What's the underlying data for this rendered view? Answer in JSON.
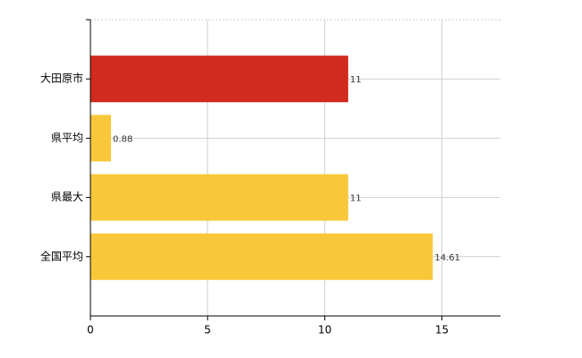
{
  "chart_data": {
    "type": "barh",
    "categories": [
      "大田原市",
      "県平均",
      "県最大",
      "全国平均"
    ],
    "values": [
      11,
      0.88,
      11,
      14.61
    ],
    "colors": [
      "#d12a1e",
      "#f8c83a",
      "#f8c83a",
      "#f8c83a"
    ],
    "xlim": [
      0,
      17.5
    ],
    "xticks": [
      0,
      5,
      10,
      15
    ],
    "grid": true
  }
}
